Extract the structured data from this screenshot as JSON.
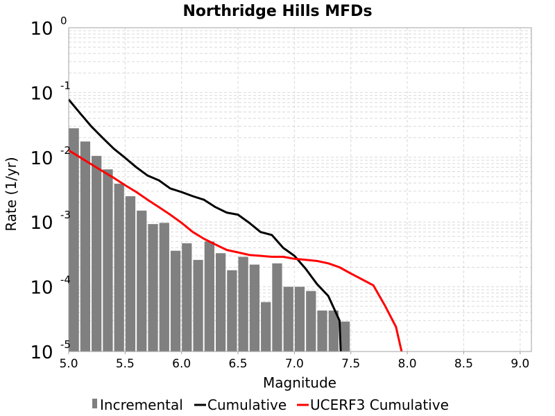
{
  "chart_data": {
    "type": "bar+line",
    "title": "Northridge Hills MFDs",
    "xlabel": "Magnitude",
    "ylabel": "Rate (1/yr)",
    "x_scale": "linear",
    "y_scale": "log",
    "xlim": [
      5.0,
      9.1
    ],
    "ylim": [
      1e-05,
      1
    ],
    "x_ticks": [
      "5.0",
      "5.5",
      "6.0",
      "6.5",
      "7.0",
      "7.5",
      "8.0",
      "8.5",
      "9.0"
    ],
    "y_ticks": [
      {
        "base": "10",
        "exp": "0",
        "value": 1
      },
      {
        "base": "10",
        "exp": "-1",
        "value": 0.1
      },
      {
        "base": "10",
        "exp": "-2",
        "value": 0.01
      },
      {
        "base": "10",
        "exp": "-3",
        "value": 0.001
      },
      {
        "base": "10",
        "exp": "-4",
        "value": 0.0001
      },
      {
        "base": "10",
        "exp": "-5",
        "value": 1e-05
      }
    ],
    "grid": true,
    "legend_position": "bottom",
    "series": [
      {
        "name": "Incremental",
        "kind": "bar",
        "color": "#808080",
        "bin_width": 0.1,
        "x": [
          5.05,
          5.15,
          5.25,
          5.35,
          5.45,
          5.55,
          5.65,
          5.75,
          5.85,
          5.95,
          6.05,
          6.15,
          6.25,
          6.35,
          6.45,
          6.55,
          6.65,
          6.75,
          6.85,
          6.95,
          7.05,
          7.15,
          7.25,
          7.35,
          7.45
        ],
        "values": [
          0.028,
          0.0175,
          0.0105,
          0.0065,
          0.0039,
          0.0025,
          0.0015,
          0.00093,
          0.00097,
          0.00036,
          0.00047,
          0.00026,
          0.0005,
          0.00033,
          0.00018,
          0.00029,
          0.00022,
          5.8e-05,
          0.00023,
          0.0001,
          0.0001,
          8.6e-05,
          4.3e-05,
          4.3e-05,
          2.9e-05
        ]
      },
      {
        "name": "Cumulative",
        "kind": "line",
        "color": "#000000",
        "x": [
          5.0,
          5.1,
          5.2,
          5.3,
          5.4,
          5.5,
          5.6,
          5.7,
          5.8,
          5.9,
          6.0,
          6.1,
          6.2,
          6.3,
          6.4,
          6.5,
          6.6,
          6.7,
          6.8,
          6.9,
          7.0,
          7.1,
          7.2,
          7.3,
          7.4,
          7.41
        ],
        "values": [
          0.078,
          0.048,
          0.03,
          0.02,
          0.0135,
          0.0098,
          0.007,
          0.0052,
          0.0044,
          0.0033,
          0.0029,
          0.0025,
          0.0022,
          0.0017,
          0.0014,
          0.0013,
          0.00097,
          0.0007,
          0.00063,
          0.0004,
          0.0003,
          0.00019,
          0.00011,
          7.2e-05,
          3e-05,
          1e-05
        ]
      },
      {
        "name": "UCERF3 Cumulative",
        "kind": "line",
        "color": "#ff0000",
        "x": [
          5.0,
          5.1,
          5.2,
          5.3,
          5.4,
          5.5,
          5.6,
          5.7,
          5.8,
          5.9,
          6.0,
          6.1,
          6.2,
          6.3,
          6.4,
          6.5,
          6.6,
          6.7,
          6.8,
          6.9,
          7.0,
          7.1,
          7.2,
          7.3,
          7.4,
          7.5,
          7.6,
          7.7,
          7.8,
          7.9,
          7.95
        ],
        "values": [
          0.0128,
          0.01,
          0.0078,
          0.0061,
          0.0048,
          0.0037,
          0.0029,
          0.0022,
          0.0017,
          0.0013,
          0.00097,
          0.0007,
          0.00055,
          0.00045,
          0.00037,
          0.00034,
          0.00031,
          0.0003,
          0.00029,
          0.00029,
          0.00027,
          0.00026,
          0.00025,
          0.00023,
          0.0002,
          0.00016,
          0.00013,
          0.000105,
          5.2e-05,
          2.4e-05,
          1e-05
        ]
      }
    ]
  }
}
